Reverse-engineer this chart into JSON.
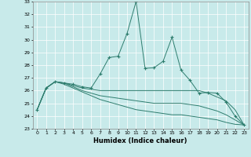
{
  "xlabel": "Humidex (Indice chaleur)",
  "background_color": "#c8eaea",
  "grid_color": "#ffffff",
  "line_color": "#2e7d6e",
  "xlim": [
    -0.5,
    23.5
  ],
  "ylim": [
    23,
    33
  ],
  "xticks": [
    0,
    1,
    2,
    3,
    4,
    5,
    6,
    7,
    8,
    9,
    10,
    11,
    12,
    13,
    14,
    15,
    16,
    17,
    18,
    19,
    20,
    21,
    22,
    23
  ],
  "yticks": [
    23,
    24,
    25,
    26,
    27,
    28,
    29,
    30,
    31,
    32,
    33
  ],
  "series": [
    {
      "x": [
        0,
        1,
        2,
        3,
        4,
        5,
        6,
        7,
        8,
        9,
        10,
        11,
        12,
        13,
        14,
        15,
        16,
        17,
        18,
        19,
        20,
        21,
        22,
        23
      ],
      "y": [
        24.5,
        26.2,
        26.7,
        26.6,
        26.5,
        26.3,
        26.2,
        27.3,
        28.6,
        28.7,
        30.5,
        33.0,
        27.75,
        27.8,
        28.3,
        30.2,
        27.6,
        26.8,
        25.8,
        25.85,
        25.8,
        25.1,
        24.0,
        23.3
      ],
      "marker": "+"
    },
    {
      "x": [
        0,
        1,
        2,
        3,
        4,
        5,
        6,
        7,
        8,
        9,
        10,
        11,
        12,
        13,
        14,
        15,
        16,
        17,
        18,
        19,
        20,
        21,
        22,
        23
      ],
      "y": [
        24.5,
        26.2,
        26.7,
        26.6,
        26.4,
        26.2,
        26.1,
        26.0,
        26.0,
        26.0,
        26.0,
        26.0,
        26.0,
        26.0,
        26.0,
        26.0,
        26.0,
        26.0,
        26.0,
        25.8,
        25.5,
        25.2,
        24.5,
        23.3
      ],
      "marker": false
    },
    {
      "x": [
        0,
        1,
        2,
        3,
        4,
        5,
        6,
        7,
        8,
        9,
        10,
        11,
        12,
        13,
        14,
        15,
        16,
        17,
        18,
        19,
        20,
        21,
        22,
        23
      ],
      "y": [
        24.5,
        26.2,
        26.7,
        26.6,
        26.3,
        26.0,
        25.8,
        25.6,
        25.5,
        25.4,
        25.3,
        25.2,
        25.1,
        25.0,
        25.0,
        25.0,
        25.0,
        24.9,
        24.8,
        24.6,
        24.4,
        24.1,
        23.7,
        23.3
      ],
      "marker": false
    },
    {
      "x": [
        0,
        1,
        2,
        3,
        4,
        5,
        6,
        7,
        8,
        9,
        10,
        11,
        12,
        13,
        14,
        15,
        16,
        17,
        18,
        19,
        20,
        21,
        22,
        23
      ],
      "y": [
        24.5,
        26.2,
        26.7,
        26.5,
        26.2,
        25.9,
        25.6,
        25.3,
        25.1,
        24.9,
        24.7,
        24.5,
        24.4,
        24.3,
        24.2,
        24.1,
        24.1,
        24.0,
        23.9,
        23.8,
        23.7,
        23.5,
        23.35,
        23.3
      ],
      "marker": false
    }
  ]
}
